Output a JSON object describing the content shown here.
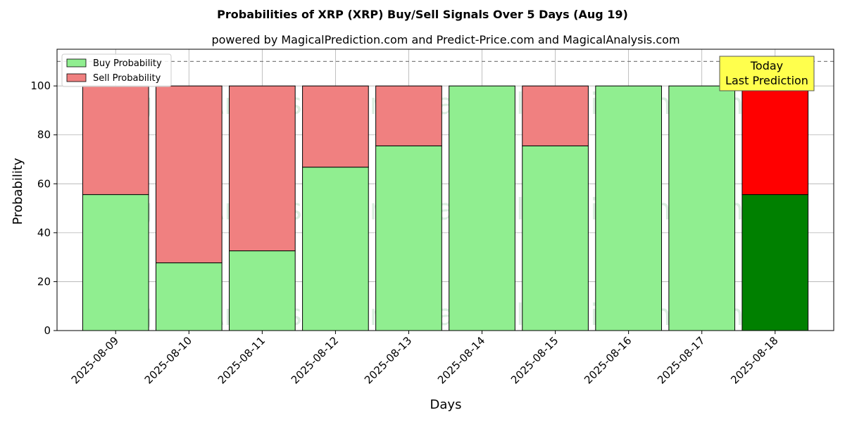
{
  "chart_data": {
    "type": "bar",
    "stacked": true,
    "title": "Probabilities of XRP (XRP) Buy/Sell Signals Over 5 Days (Aug 19)",
    "subtitle": "powered by MagicalPrediction.com and Predict-Price.com and MagicalAnalysis.com",
    "xlabel": "Days",
    "ylabel": "Probability",
    "ylim": [
      0,
      115
    ],
    "yticks": [
      0,
      20,
      40,
      60,
      80,
      100
    ],
    "grid": true,
    "legend_position": "top-left",
    "reference_line": 110,
    "categories": [
      "2025-08-09",
      "2025-08-10",
      "2025-08-11",
      "2025-08-12",
      "2025-08-13",
      "2025-08-14",
      "2025-08-15",
      "2025-08-16",
      "2025-08-17",
      "2025-08-18"
    ],
    "series": [
      {
        "name": "Buy Probability",
        "values": [
          55.6,
          27.7,
          32.6,
          66.8,
          75.5,
          100,
          75.5,
          100,
          100,
          55.6
        ],
        "color": "#90ee90",
        "highlight_color": "#008000"
      },
      {
        "name": "Sell Probability",
        "values": [
          44.4,
          72.3,
          67.4,
          33.2,
          24.5,
          0,
          24.5,
          0,
          0,
          44.4
        ],
        "color": "#f08080",
        "highlight_color": "#ff0000"
      }
    ],
    "highlight_index": 9,
    "annotation": {
      "lines": [
        "Today",
        "Last Prediction"
      ],
      "color": "#ffff4d"
    },
    "watermarks": [
      "MagicalAnalysis.com",
      "MagicalPrediction.com"
    ]
  }
}
